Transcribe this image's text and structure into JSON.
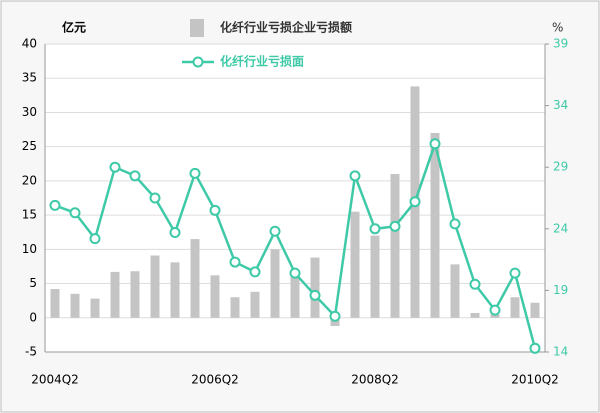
{
  "chart_data": {
    "type": "bar-line",
    "y_label": "亿元",
    "y2_label": "%",
    "categories": [
      "2004Q2",
      null,
      null,
      null,
      null,
      null,
      null,
      null,
      "2006Q2",
      null,
      null,
      null,
      null,
      null,
      null,
      null,
      "2008Q2",
      null,
      null,
      null,
      null,
      null,
      null,
      null,
      "2010Q2"
    ],
    "series": [
      {
        "name": "化纤行业亏损企业亏损额",
        "color": "#c4c4c4",
        "type": "bar",
        "values": [
          4.2,
          3.5,
          2.8,
          6.7,
          6.8,
          9.1,
          8.1,
          11.5,
          6.2,
          3.0,
          3.8,
          10.0,
          7.0,
          8.8,
          -1.2,
          15.5,
          12.0,
          21.0,
          33.8,
          27.0,
          7.8,
          0.7,
          0.5,
          3.0,
          2.2
        ]
      },
      {
        "name": "化纤行业亏损面",
        "color": "#3ec9a7",
        "type": "line",
        "axis": "y2",
        "values": [
          25.9,
          25.3,
          23.2,
          29.0,
          28.3,
          26.5,
          23.7,
          28.5,
          25.5,
          21.3,
          20.5,
          23.8,
          20.4,
          18.6,
          16.9,
          28.3,
          24.0,
          24.2,
          26.2,
          30.9,
          24.4,
          19.5,
          17.4,
          20.4,
          14.3
        ]
      }
    ],
    "ylim": [
      -5,
      40
    ],
    "yticks": [
      -5,
      0,
      5,
      10,
      15,
      20,
      25,
      30,
      35,
      40
    ],
    "y2lim": [
      14,
      39
    ],
    "y2ticks": [
      14,
      19,
      24,
      29,
      34,
      39
    ],
    "grid": true
  }
}
